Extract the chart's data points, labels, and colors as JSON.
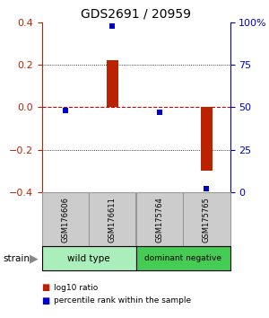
{
  "title": "GDS2691 / 20959",
  "samples": [
    "GSM176606",
    "GSM176611",
    "GSM175764",
    "GSM175765"
  ],
  "log10_ratio": [
    0.0,
    0.22,
    0.0,
    -0.3
  ],
  "percentile_rank": [
    48,
    98,
    47,
    2
  ],
  "ylim_left": [
    -0.4,
    0.4
  ],
  "ylim_right": [
    0,
    100
  ],
  "yticks_left": [
    -0.4,
    -0.2,
    0.0,
    0.2,
    0.4
  ],
  "yticks_right": [
    0,
    25,
    50,
    75,
    100
  ],
  "bar_color": "#bb2200",
  "dot_color": "#0000cc",
  "hline_color": "#cc0000",
  "dot_color_grid": "#000000",
  "groups": [
    {
      "label": "wild type",
      "indices": [
        0,
        1
      ],
      "color": "#aaeebb"
    },
    {
      "label": "dominant negative",
      "indices": [
        2,
        3
      ],
      "color": "#44cc55"
    }
  ],
  "strain_label": "strain",
  "legend_bar_label": "log10 ratio",
  "legend_dot_label": "percentile rank within the sample",
  "bg_color": "#ffffff",
  "sample_box_color": "#cccccc",
  "sample_box_edge": "#999999"
}
